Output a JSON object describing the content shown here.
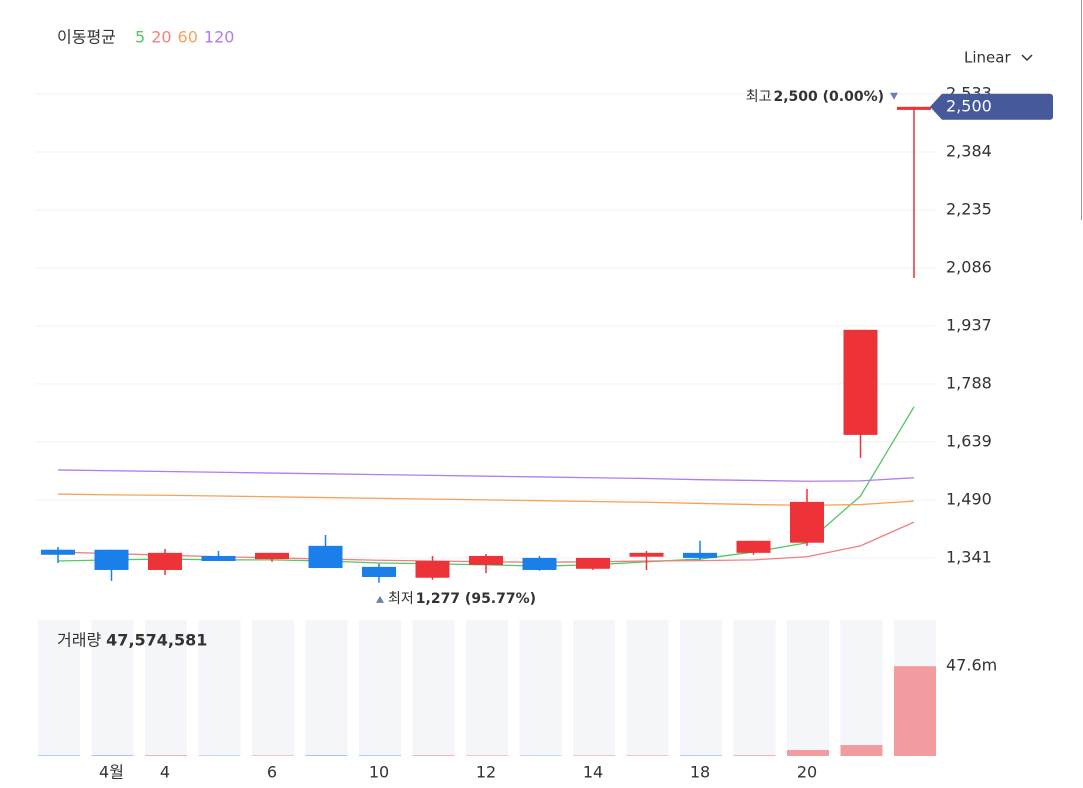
{
  "chart_data": {
    "type": "candlestick",
    "legend_title": "이동평균",
    "scale_mode": "Linear",
    "categories": [
      null,
      "4월",
      "4",
      null,
      "6",
      null,
      "10",
      null,
      "12",
      null,
      "14",
      null,
      "18",
      null,
      "20",
      null,
      null
    ],
    "open": [
      1362,
      1362,
      1310,
      1346,
      1338,
      1372,
      1318,
      1290,
      1323,
      1341,
      1313,
      1344,
      1354,
      1354,
      1380,
      1657,
      2492
    ],
    "high": [
      1369,
      1362,
      1364,
      1359,
      1354,
      1400,
      1326,
      1346,
      1351,
      1346,
      1341,
      1359,
      1385,
      1385,
      1518,
      1927,
      2500
    ],
    "low": [
      1328,
      1282,
      1297,
      1333,
      1331,
      1315,
      1277,
      1285,
      1302,
      1308,
      1310,
      1310,
      1336,
      1349,
      1372,
      1598,
      2060
    ],
    "close": [
      1349,
      1310,
      1354,
      1333,
      1354,
      1315,
      1292,
      1333,
      1346,
      1310,
      1341,
      1354,
      1341,
      1385,
      1485,
      1927,
      2500
    ],
    "up_color": "#ee3338",
    "down_color": "#1a7fe8",
    "moving_averages": [
      {
        "name": "5",
        "color": "#55c765",
        "values": [
          1333,
          1336,
          1338,
          1336,
          1336,
          1333,
          1328,
          1326,
          1323,
          1320,
          1323,
          1331,
          1338,
          1356,
          1380,
          1500,
          1729
        ]
      },
      {
        "name": "20",
        "color": "#f07f80",
        "values": [
          1356,
          1352,
          1348,
          1344,
          1341,
          1338,
          1335,
          1333,
          1331,
          1330,
          1331,
          1333,
          1334,
          1336,
          1344,
          1372,
          1433
        ]
      },
      {
        "name": "60",
        "color": "#f5a359",
        "values": [
          1505,
          1503,
          1502,
          1500,
          1498,
          1496,
          1494,
          1492,
          1490,
          1488,
          1486,
          1484,
          1481,
          1478,
          1476,
          1478,
          1487
        ]
      },
      {
        "name": "120",
        "color": "#b07cf0",
        "values": [
          1567,
          1565,
          1563,
          1561,
          1559,
          1557,
          1555,
          1553,
          1551,
          1549,
          1547,
          1545,
          1542,
          1540,
          1538,
          1539,
          1547
        ]
      }
    ],
    "ylim": [
      1220,
      2556
    ],
    "yticks": [
      {
        "value": 1341,
        "label": "1,341"
      },
      {
        "value": 1490,
        "label": "1,490"
      },
      {
        "value": 1639,
        "label": "1,639"
      },
      {
        "value": 1788,
        "label": "1,788"
      },
      {
        "value": 1937,
        "label": "1,937"
      },
      {
        "value": 2086,
        "label": "2,086"
      },
      {
        "value": 2235,
        "label": "2,235"
      },
      {
        "value": 2384,
        "label": "2,384"
      },
      {
        "value": 2533,
        "label": "2,533"
      }
    ],
    "grid": true,
    "high_annotation": {
      "label": "최고",
      "text": "2,500 (0.00%)"
    },
    "low_annotation": {
      "label": "최저",
      "text": "1,277 (95.77%)"
    },
    "last_price_label": "2,500",
    "last_price_color": "#46599a",
    "volume": {
      "title": "거래량",
      "values": [
        400000,
        500000,
        400000,
        300000,
        300000,
        500000,
        400000,
        400000,
        300000,
        300000,
        300000,
        300000,
        400000,
        400000,
        3200000,
        5800000,
        47574581
      ],
      "value_labels": [
        null,
        null,
        null,
        null,
        null,
        null,
        null,
        null,
        null,
        null,
        null,
        null,
        null,
        null,
        null,
        null,
        "47,574,581"
      ],
      "ylim": [
        0,
        72000000
      ],
      "yticks": [
        {
          "value": 47574581,
          "label": "47.6m"
        }
      ],
      "up_color": "#f29ca0",
      "down_color": "#9cc4f2"
    }
  }
}
